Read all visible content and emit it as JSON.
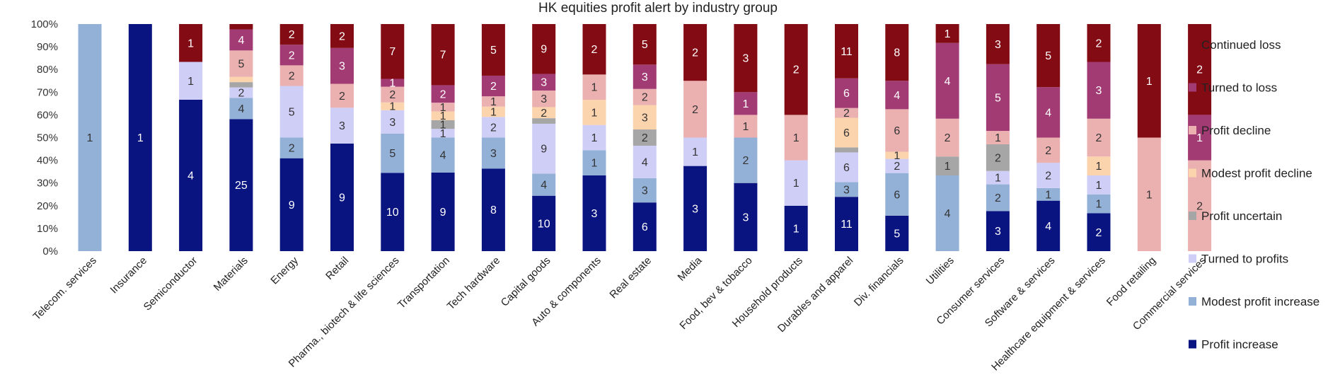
{
  "chart_data": {
    "type": "bar",
    "stacked": true,
    "normalized": true,
    "title": "HK equities profit alert by industry group",
    "ylim": [
      0,
      100
    ],
    "yticks": [
      "0%",
      "10%",
      "20%",
      "30%",
      "40%",
      "50%",
      "60%",
      "70%",
      "80%",
      "90%",
      "100%"
    ],
    "legend_position": "right",
    "categories": [
      "Telecom. services",
      "Insurance",
      "Semiconductor",
      "Materials",
      "Energy",
      "Retail",
      "Pharma., biotech & life sciences",
      "Transportation",
      "Tech hardware",
      "Capital goods",
      "Auto & components",
      "Real estate",
      "Media",
      "Food, bev & tobacco",
      "Household products",
      "Durables and apparel",
      "Div. financials",
      "Utilities",
      "Consumer services",
      "Software & services",
      "Healthcare equipment & services",
      "Food retailing",
      "Commercial services"
    ],
    "series": [
      {
        "name": "Profit increase",
        "color": "#0a1480",
        "values": [
          0,
          1,
          4,
          25,
          9,
          9,
          10,
          9,
          8,
          10,
          3,
          6,
          3,
          3,
          1,
          11,
          5,
          0,
          3,
          4,
          2,
          0,
          0
        ]
      },
      {
        "name": "Modest profit increase",
        "color": "#93b1d7",
        "values": [
          1,
          0,
          0,
          4,
          2,
          0,
          5,
          4,
          3,
          4,
          1,
          3,
          0,
          2,
          0,
          3,
          6,
          4,
          2,
          1,
          1,
          0,
          0
        ]
      },
      {
        "name": "Turned to profits",
        "color": "#cfcef7",
        "values": [
          0,
          0,
          1,
          2,
          5,
          3,
          3,
          1,
          2,
          9,
          1,
          4,
          1,
          0,
          1,
          6,
          2,
          0,
          1,
          2,
          1,
          0,
          0
        ]
      },
      {
        "name": "Profit uncertain",
        "color": "#a6a6a6",
        "values": [
          0,
          0,
          0,
          1,
          0,
          0,
          0,
          1,
          0,
          1,
          0,
          2,
          0,
          0,
          0,
          1,
          0,
          1,
          2,
          0,
          0,
          0,
          0
        ]
      },
      {
        "name": "Modest profit decline",
        "color": "#fbd3ad",
        "values": [
          0,
          0,
          0,
          1,
          0,
          0,
          1,
          1,
          1,
          2,
          1,
          3,
          0,
          0,
          0,
          6,
          1,
          0,
          0,
          0,
          1,
          0,
          0
        ]
      },
      {
        "name": "Profit decline",
        "color": "#ebb0b0",
        "values": [
          0,
          0,
          0,
          5,
          2,
          2,
          2,
          1,
          1,
          3,
          1,
          2,
          2,
          1,
          1,
          2,
          6,
          2,
          1,
          2,
          2,
          1,
          2
        ]
      },
      {
        "name": "Turned to loss",
        "color": "#a23a73",
        "values": [
          0,
          0,
          0,
          4,
          2,
          3,
          1,
          2,
          2,
          3,
          0,
          3,
          0,
          1,
          0,
          6,
          4,
          4,
          5,
          4,
          3,
          0,
          1
        ]
      },
      {
        "name": "Continued loss",
        "color": "#830b14",
        "values": [
          0,
          0,
          1,
          1,
          2,
          2,
          7,
          7,
          5,
          9,
          2,
          5,
          2,
          3,
          2,
          11,
          8,
          1,
          3,
          5,
          2,
          1,
          2
        ]
      }
    ]
  }
}
